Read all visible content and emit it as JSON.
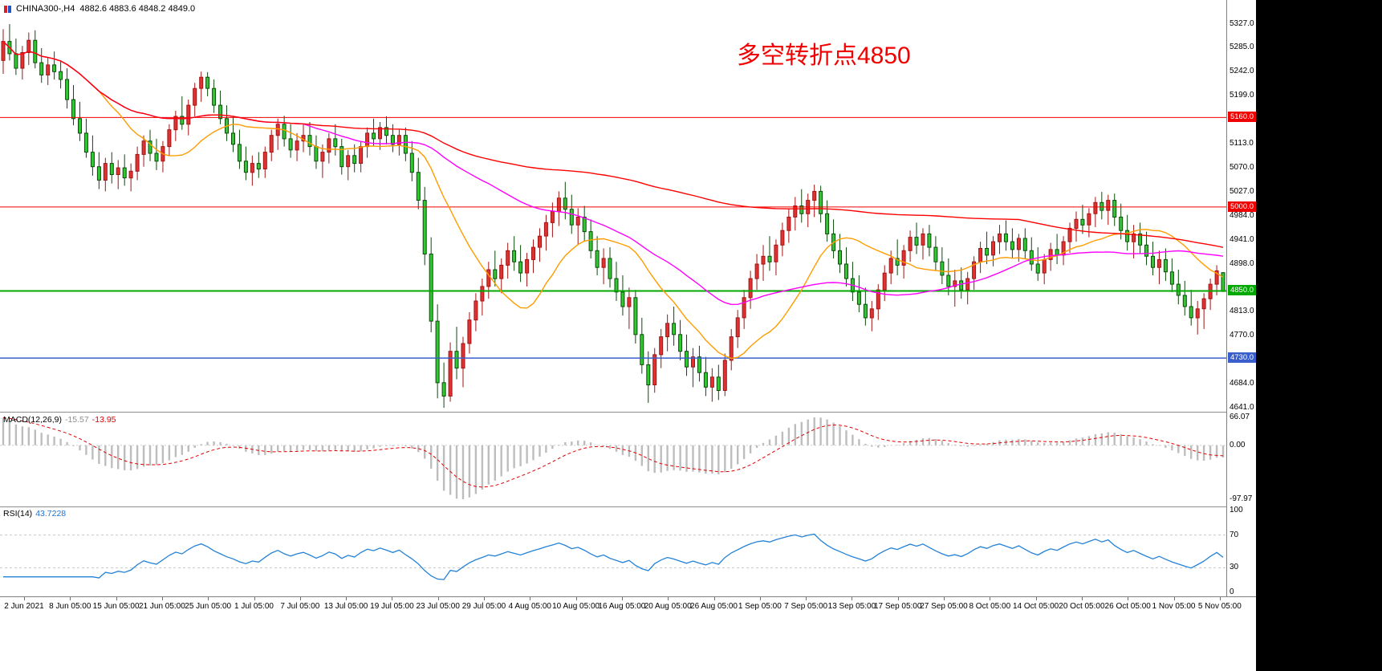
{
  "header": {
    "symbol": "CHINA300-,H4",
    "ohlc_text": "4882.6 4883.6 4848.2 4849.0"
  },
  "annotation": {
    "text": "多空转折点4850",
    "color": "#f00000"
  },
  "chart_data": {
    "type": "candlestick",
    "title": "CHINA300- H4",
    "timeframe": "H4",
    "ylim": [
      4641,
      5327
    ],
    "bull_color": "#e03232",
    "bull_border": "#a01414",
    "bear_color": "#31c831",
    "bear_border": "#0c4a0c",
    "ohlc": [
      [
        5262,
        5318,
        5238,
        5296
      ],
      [
        5296,
        5327,
        5262,
        5274
      ],
      [
        5274,
        5301,
        5236,
        5248
      ],
      [
        5248,
        5288,
        5228,
        5276
      ],
      [
        5276,
        5312,
        5254,
        5298
      ],
      [
        5298,
        5316,
        5248,
        5258
      ],
      [
        5258,
        5284,
        5222,
        5236
      ],
      [
        5236,
        5268,
        5218,
        5254
      ],
      [
        5254,
        5278,
        5228,
        5242
      ],
      [
        5242,
        5262,
        5212,
        5228
      ],
      [
        5228,
        5248,
        5176,
        5192
      ],
      [
        5192,
        5218,
        5146,
        5158
      ],
      [
        5158,
        5188,
        5118,
        5132
      ],
      [
        5132,
        5158,
        5088,
        5098
      ],
      [
        5098,
        5128,
        5056,
        5072
      ],
      [
        5072,
        5098,
        5032,
        5048
      ],
      [
        5048,
        5088,
        5028,
        5078
      ],
      [
        5078,
        5098,
        5042,
        5058
      ],
      [
        5058,
        5084,
        5032,
        5070
      ],
      [
        5070,
        5094,
        5038,
        5052
      ],
      [
        5052,
        5078,
        5028,
        5064
      ],
      [
        5064,
        5108,
        5048,
        5094
      ],
      [
        5094,
        5128,
        5072,
        5118
      ],
      [
        5118,
        5138,
        5082,
        5096
      ],
      [
        5096,
        5122,
        5066,
        5082
      ],
      [
        5082,
        5118,
        5062,
        5108
      ],
      [
        5108,
        5148,
        5092,
        5138
      ],
      [
        5138,
        5172,
        5118,
        5162
      ],
      [
        5162,
        5198,
        5138,
        5148
      ],
      [
        5148,
        5192,
        5128,
        5182
      ],
      [
        5182,
        5222,
        5162,
        5212
      ],
      [
        5212,
        5242,
        5188,
        5232
      ],
      [
        5232,
        5241,
        5198,
        5212
      ],
      [
        5212,
        5228,
        5168,
        5182
      ],
      [
        5182,
        5208,
        5148,
        5158
      ],
      [
        5158,
        5182,
        5118,
        5132
      ],
      [
        5132,
        5162,
        5098,
        5112
      ],
      [
        5112,
        5138,
        5068,
        5082
      ],
      [
        5082,
        5108,
        5048,
        5062
      ],
      [
        5062,
        5092,
        5038,
        5078
      ],
      [
        5078,
        5098,
        5052,
        5068
      ],
      [
        5068,
        5108,
        5052,
        5098
      ],
      [
        5098,
        5138,
        5082,
        5128
      ],
      [
        5128,
        5158,
        5102,
        5148
      ],
      [
        5148,
        5163,
        5108,
        5122
      ],
      [
        5122,
        5148,
        5088,
        5102
      ],
      [
        5102,
        5132,
        5082,
        5118
      ],
      [
        5118,
        5148,
        5098,
        5128
      ],
      [
        5128,
        5152,
        5092,
        5108
      ],
      [
        5108,
        5128,
        5068,
        5082
      ],
      [
        5082,
        5112,
        5052,
        5098
      ],
      [
        5098,
        5132,
        5078,
        5122
      ],
      [
        5122,
        5148,
        5092,
        5108
      ],
      [
        5108,
        5122,
        5058,
        5072
      ],
      [
        5072,
        5102,
        5048,
        5092
      ],
      [
        5092,
        5112,
        5062,
        5078
      ],
      [
        5078,
        5118,
        5062,
        5108
      ],
      [
        5108,
        5142,
        5088,
        5132
      ],
      [
        5132,
        5158,
        5108,
        5122
      ],
      [
        5122,
        5152,
        5102,
        5142
      ],
      [
        5142,
        5162,
        5112,
        5128
      ],
      [
        5128,
        5148,
        5098,
        5112
      ],
      [
        5112,
        5138,
        5092,
        5128
      ],
      [
        5128,
        5142,
        5082,
        5096
      ],
      [
        5096,
        5118,
        5046,
        5062
      ],
      [
        5062,
        5088,
        4996,
        5012
      ],
      [
        5012,
        5036,
        4896,
        4916
      ],
      [
        4916,
        4946,
        4776,
        4796
      ],
      [
        4796,
        4826,
        4658,
        4686
      ],
      [
        4686,
        4722,
        4641,
        4662
      ],
      [
        4662,
        4758,
        4652,
        4742
      ],
      [
        4742,
        4786,
        4692,
        4712
      ],
      [
        4712,
        4768,
        4678,
        4756
      ],
      [
        4756,
        4812,
        4738,
        4798
      ],
      [
        4798,
        4846,
        4778,
        4832
      ],
      [
        4832,
        4872,
        4806,
        4858
      ],
      [
        4858,
        4902,
        4836,
        4888
      ],
      [
        4888,
        4922,
        4858,
        4872
      ],
      [
        4872,
        4908,
        4846,
        4896
      ],
      [
        4896,
        4936,
        4872,
        4922
      ],
      [
        4922,
        4948,
        4886,
        4902
      ],
      [
        4902,
        4932,
        4866,
        4882
      ],
      [
        4882,
        4918,
        4858,
        4906
      ],
      [
        4906,
        4942,
        4882,
        4928
      ],
      [
        4928,
        4962,
        4902,
        4948
      ],
      [
        4948,
        4986,
        4922,
        4972
      ],
      [
        4972,
        5008,
        4946,
        4992
      ],
      [
        4992,
        5028,
        4966,
        5016
      ],
      [
        5016,
        5045,
        4978,
        4996
      ],
      [
        4996,
        5022,
        4952,
        4968
      ],
      [
        4968,
        4998,
        4932,
        4982
      ],
      [
        4982,
        5002,
        4938,
        4956
      ],
      [
        4956,
        4978,
        4908,
        4922
      ],
      [
        4922,
        4948,
        4878,
        4892
      ],
      [
        4892,
        4926,
        4862,
        4908
      ],
      [
        4908,
        4928,
        4856,
        4872
      ],
      [
        4872,
        4902,
        4832,
        4848
      ],
      [
        4848,
        4878,
        4806,
        4822
      ],
      [
        4822,
        4856,
        4782,
        4838
      ],
      [
        4838,
        4852,
        4756,
        4772
      ],
      [
        4772,
        4802,
        4702,
        4718
      ],
      [
        4718,
        4742,
        4650,
        4682
      ],
      [
        4682,
        4748,
        4668,
        4736
      ],
      [
        4736,
        4782,
        4712,
        4768
      ],
      [
        4768,
        4808,
        4742,
        4792
      ],
      [
        4792,
        4822,
        4752,
        4772
      ],
      [
        4772,
        4798,
        4726,
        4742
      ],
      [
        4742,
        4772,
        4698,
        4714
      ],
      [
        4714,
        4748,
        4678,
        4732
      ],
      [
        4732,
        4752,
        4688,
        4704
      ],
      [
        4704,
        4732,
        4662,
        4678
      ],
      [
        4678,
        4712,
        4652,
        4696
      ],
      [
        4696,
        4718,
        4655,
        4672
      ],
      [
        4672,
        4738,
        4662,
        4726
      ],
      [
        4726,
        4782,
        4708,
        4768
      ],
      [
        4768,
        4816,
        4748,
        4802
      ],
      [
        4802,
        4852,
        4782,
        4838
      ],
      [
        4838,
        4886,
        4818,
        4872
      ],
      [
        4872,
        4916,
        4852,
        4898
      ],
      [
        4898,
        4932,
        4868,
        4912
      ],
      [
        4912,
        4948,
        4886,
        4902
      ],
      [
        4902,
        4942,
        4878,
        4932
      ],
      [
        4932,
        4972,
        4912,
        4958
      ],
      [
        4958,
        4996,
        4936,
        4982
      ],
      [
        4982,
        5018,
        4958,
        5002
      ],
      [
        5002,
        5032,
        4972,
        4988
      ],
      [
        4988,
        5024,
        4964,
        5012
      ],
      [
        5012,
        5040,
        4982,
        5028
      ],
      [
        5028,
        5038,
        4972,
        4988
      ],
      [
        4988,
        5012,
        4938,
        4952
      ],
      [
        4952,
        4978,
        4908,
        4922
      ],
      [
        4922,
        4952,
        4882,
        4898
      ],
      [
        4898,
        4928,
        4858,
        4872
      ],
      [
        4872,
        4902,
        4832,
        4848
      ],
      [
        4848,
        4878,
        4812,
        4826
      ],
      [
        4826,
        4856,
        4788,
        4802
      ],
      [
        4802,
        4832,
        4778,
        4818
      ],
      [
        4818,
        4862,
        4798,
        4852
      ],
      [
        4852,
        4896,
        4832,
        4882
      ],
      [
        4882,
        4922,
        4862,
        4908
      ],
      [
        4908,
        4942,
        4878,
        4896
      ],
      [
        4896,
        4932,
        4872,
        4922
      ],
      [
        4922,
        4958,
        4902,
        4946
      ],
      [
        4946,
        4972,
        4916,
        4932
      ],
      [
        4932,
        4962,
        4906,
        4952
      ],
      [
        4952,
        4968,
        4912,
        4928
      ],
      [
        4928,
        4948,
        4886,
        4902
      ],
      [
        4902,
        4928,
        4862,
        4878
      ],
      [
        4878,
        4908,
        4842,
        4858
      ],
      [
        4858,
        4888,
        4822,
        4868
      ],
      [
        4868,
        4892,
        4836,
        4852
      ],
      [
        4852,
        4884,
        4826,
        4872
      ],
      [
        4872,
        4912,
        4852,
        4902
      ],
      [
        4902,
        4938,
        4882,
        4926
      ],
      [
        4926,
        4956,
        4898,
        4914
      ],
      [
        4914,
        4948,
        4894,
        4938
      ],
      [
        4938,
        4968,
        4916,
        4952
      ],
      [
        4952,
        4976,
        4922,
        4938
      ],
      [
        4938,
        4962,
        4908,
        4924
      ],
      [
        4924,
        4952,
        4902,
        4944
      ],
      [
        4944,
        4962,
        4908,
        4922
      ],
      [
        4922,
        4946,
        4886,
        4898
      ],
      [
        4898,
        4928,
        4868,
        4882
      ],
      [
        4882,
        4916,
        4862,
        4906
      ],
      [
        4906,
        4936,
        4886,
        4924
      ],
      [
        4924,
        4952,
        4898,
        4914
      ],
      [
        4914,
        4948,
        4896,
        4938
      ],
      [
        4938,
        4972,
        4918,
        4962
      ],
      [
        4962,
        4992,
        4938,
        4978
      ],
      [
        4978,
        5004,
        4952,
        4968
      ],
      [
        4968,
        4998,
        4946,
        4988
      ],
      [
        4988,
        5018,
        4964,
        5008
      ],
      [
        5008,
        5027,
        4978,
        4994
      ],
      [
        4994,
        5022,
        4968,
        5012
      ],
      [
        5012,
        5024,
        4966,
        4982
      ],
      [
        4982,
        5006,
        4942,
        4958
      ],
      [
        4958,
        4986,
        4922,
        4938
      ],
      [
        4938,
        4968,
        4908,
        4952
      ],
      [
        4952,
        4972,
        4916,
        4932
      ],
      [
        4932,
        4956,
        4896,
        4912
      ],
      [
        4912,
        4938,
        4878,
        4892
      ],
      [
        4892,
        4922,
        4862,
        4906
      ],
      [
        4906,
        4926,
        4868,
        4884
      ],
      [
        4884,
        4908,
        4848,
        4862
      ],
      [
        4862,
        4888,
        4826,
        4842
      ],
      [
        4842,
        4868,
        4806,
        4822
      ],
      [
        4822,
        4852,
        4788,
        4802
      ],
      [
        4802,
        4832,
        4772,
        4818
      ],
      [
        4818,
        4846,
        4782,
        4836
      ],
      [
        4836,
        4872,
        4816,
        4862
      ],
      [
        4862,
        4896,
        4842,
        4886
      ],
      [
        4882.6,
        4883.6,
        4848.2,
        4849.0
      ]
    ],
    "moving_averages": [
      {
        "period": 16,
        "color": "#ff9c00",
        "name": "MA fast (orange)"
      },
      {
        "period": 48,
        "color": "#ff00ff",
        "name": "MA medium (magenta)"
      },
      {
        "period": 160,
        "color": "#ff0000",
        "name": "MA slow (red)"
      }
    ],
    "horizontal_lines": [
      {
        "price": 5160,
        "label": "5160.0",
        "color": "#f00000",
        "width": 1
      },
      {
        "price": 5000,
        "label": "5000.0",
        "color": "#f00000",
        "width": 1
      },
      {
        "price": 4850,
        "label": "4850.0",
        "color": "#00a800",
        "width": 2
      },
      {
        "price": 4730,
        "label": "4730.0",
        "color": "#3a5fcd",
        "width": 1.5
      }
    ],
    "price_ticks": [
      {
        "label": "5327.0",
        "price": 5327
      },
      {
        "label": "5285.0",
        "price": 5285
      },
      {
        "label": "5242.0",
        "price": 5242
      },
      {
        "label": "5199.0",
        "price": 5199
      },
      {
        "label": "5113.0",
        "price": 5113
      },
      {
        "label": "5070.0",
        "price": 5070
      },
      {
        "label": "5027.0",
        "price": 5027
      },
      {
        "label": "4984.0",
        "price": 4984
      },
      {
        "label": "4941.0",
        "price": 4941
      },
      {
        "label": "4898.0",
        "price": 4898
      },
      {
        "label": "4813.0",
        "price": 4813
      },
      {
        "label": "4770.0",
        "price": 4770
      },
      {
        "label": "4684.0",
        "price": 4684
      },
      {
        "label": "4641.0",
        "price": 4641
      }
    ],
    "time_labels": [
      "2 Jun 2021",
      "8 Jun 05:00",
      "15 Jun 05:00",
      "21 Jun 05:00",
      "25 Jun 05:00",
      "1 Jul 05:00",
      "7 Jul 05:00",
      "13 Jul 05:00",
      "19 Jul 05:00",
      "23 Jul 05:00",
      "29 Jul 05:00",
      "4 Aug 05:00",
      "10 Aug 05:00",
      "16 Aug 05:00",
      "20 Aug 05:00",
      "26 Aug 05:00",
      "1 Sep 05:00",
      "7 Sep 05:00",
      "13 Sep 05:00",
      "17 Sep 05:00",
      "27 Sep 05:00",
      "8 Oct 05:00",
      "14 Oct 05:00",
      "20 Oct 05:00",
      "26 Oct 05:00",
      "1 Nov 05:00",
      "5 Nov 05:00"
    ],
    "macd": {
      "label": "MACD(12,26,9)",
      "main": "-15.57",
      "signal": "-13.95",
      "params": [
        12,
        26,
        9
      ],
      "ticks": {
        "max": "66.07",
        "zero": "0.00",
        "min": "-97.97"
      },
      "histogram_color": "#bdbdbd",
      "signal_color": "#e00000"
    },
    "rsi": {
      "label": "RSI(14)",
      "value": "43.7228",
      "period": 14,
      "ticks": [
        {
          "label": "100",
          "value": 100
        },
        {
          "label": "70",
          "value": 70
        },
        {
          "label": "30",
          "value": 30
        },
        {
          "label": "0",
          "value": 0
        }
      ],
      "levels": [
        70,
        30
      ],
      "line_color": "#2382d8"
    }
  }
}
